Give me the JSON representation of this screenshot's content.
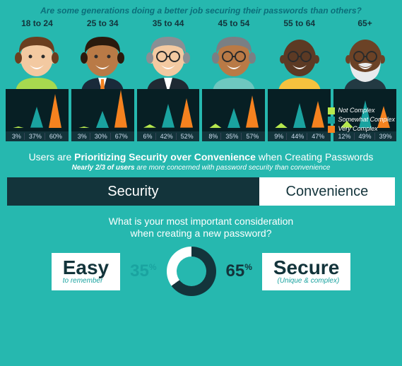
{
  "title": "Are some generations doing a better job securing their passwords than others?",
  "legend": {
    "not_complex": {
      "label": "Not Complex",
      "color": "#b6e84e"
    },
    "somewhat_complex": {
      "label": "Somewhat Complex",
      "color": "#1aa3a0"
    },
    "very_complex": {
      "label": "Very Complex",
      "color": "#f5821f"
    }
  },
  "chart_background": "#071f24",
  "label_strip_background": "#13343b",
  "generations": [
    {
      "label": "18 to 24",
      "not": 3,
      "some": 37,
      "very": 60,
      "avatar": {
        "skin": "#f3c9a1",
        "hair": "#6b3e1f",
        "shirt": "#a7d94f",
        "beard": false,
        "glasses": false,
        "suit": false
      }
    },
    {
      "label": "25 to 34",
      "not": 3,
      "some": 30,
      "very": 67,
      "avatar": {
        "skin": "#b97a46",
        "hair": "#2a1a0d",
        "shirt": "#fff",
        "beard": false,
        "glasses": false,
        "suit": true,
        "suit_color": "#1a2a3a",
        "tie": "#f5821f"
      }
    },
    {
      "label": "35 to 44",
      "not": 6,
      "some": 42,
      "very": 52,
      "avatar": {
        "skin": "#f3c9a1",
        "hair": "#8a8f94",
        "shirt": "#fff",
        "beard": false,
        "glasses": true,
        "suit": true,
        "suit_color": "#1f2a33"
      }
    },
    {
      "label": "45 to 54",
      "not": 8,
      "some": 35,
      "very": 57,
      "avatar": {
        "skin": "#b97a46",
        "hair": "#7a7f84",
        "shirt": "#fff",
        "beard": false,
        "glasses": true,
        "suit": false,
        "shirt_color": "#6ec8c0"
      }
    },
    {
      "label": "55 to 64",
      "not": 9,
      "some": 44,
      "very": 47,
      "avatar": {
        "skin": "#5c3a24",
        "hair": "none",
        "shirt": "#f6c23e",
        "beard": false,
        "glasses": true,
        "suit": false
      }
    },
    {
      "label": "65+",
      "not": 12,
      "some": 49,
      "very": 39,
      "avatar": {
        "skin": "#6b4226",
        "hair": "none",
        "shirt": "#fff",
        "beard": true,
        "beard_color": "#e8eaec",
        "glasses": true,
        "suit": false,
        "shirt_color": "#233a43"
      }
    }
  ],
  "chart_y_max": 70,
  "subtitle1_pre": "Users are ",
  "subtitle1_bold": "Prioritizing Security over Convenience",
  "subtitle1_post": " when Creating Passwords",
  "subtitle2_bold": "Nearly 2/3 of users",
  "subtitle2_rest": " are more concerned with password security than convenience",
  "split_bar": {
    "security": {
      "label": "Security",
      "pct": 65,
      "bg": "#13343b",
      "fg": "#ffffff"
    },
    "convenience": {
      "label": "Convenience",
      "pct": 35,
      "bg": "#ffffff",
      "fg": "#13343b"
    }
  },
  "question_line1": "What is your most important consideration",
  "question_line2": "when creating a new password?",
  "easy": {
    "big": "Easy",
    "sub": "to remember",
    "pct": "35",
    "color": "#1aa3a0"
  },
  "secure": {
    "big": "Secure",
    "sub": "(Unique & complex)",
    "pct": "65",
    "color": "#13343b"
  },
  "donut": {
    "secure_pct": 65,
    "secure_color": "#13343b",
    "easy_color": "#ffffff",
    "hole_color": "#26b8af"
  }
}
